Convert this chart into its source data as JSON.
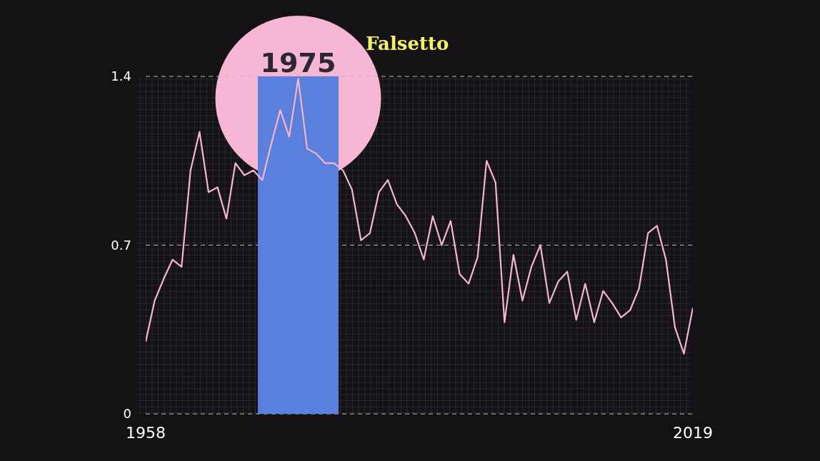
{
  "chart_data": {
    "type": "line",
    "title": "Falsetto",
    "x": [
      1958,
      1959,
      1960,
      1961,
      1962,
      1963,
      1964,
      1965,
      1966,
      1967,
      1968,
      1969,
      1970,
      1971,
      1972,
      1973,
      1974,
      1975,
      1976,
      1977,
      1978,
      1979,
      1980,
      1981,
      1982,
      1983,
      1984,
      1985,
      1986,
      1987,
      1988,
      1989,
      1990,
      1991,
      1992,
      1993,
      1994,
      1995,
      1996,
      1997,
      1998,
      1999,
      2000,
      2001,
      2002,
      2003,
      2004,
      2005,
      2006,
      2007,
      2008,
      2009,
      2010,
      2011,
      2012,
      2013,
      2014,
      2015,
      2016,
      2017,
      2018,
      2019
    ],
    "series": [
      {
        "color": "#f4b6cf",
        "values": [
          0.3,
          0.47,
          0.56,
          0.64,
          0.61,
          1.01,
          1.17,
          0.92,
          0.94,
          0.81,
          1.04,
          0.99,
          1.01,
          0.97,
          1.12,
          1.26,
          1.15,
          1.39,
          1.1,
          1.08,
          1.04,
          1.04,
          1.01,
          0.93,
          0.72,
          0.75,
          0.92,
          0.97,
          0.87,
          0.82,
          0.75,
          0.64,
          0.82,
          0.7,
          0.8,
          0.58,
          0.54,
          0.65,
          1.05,
          0.96,
          0.38,
          0.66,
          0.47,
          0.61,
          0.7,
          0.46,
          0.55,
          0.59,
          0.39,
          0.54,
          0.38,
          0.51,
          0.46,
          0.4,
          0.43,
          0.52,
          0.75,
          0.78,
          0.64,
          0.36,
          0.25,
          0.44
        ]
      }
    ],
    "xlim": [
      1958,
      2019
    ],
    "xticks": [
      1958,
      2019
    ],
    "ylim": [
      0,
      1.4
    ],
    "yticks": [
      0,
      0.7,
      1.4
    ],
    "grid": "y",
    "marker": "none",
    "line_style": "solid",
    "bands": [
      {
        "axis": "x",
        "from": 1970.5,
        "to": 1979.5,
        "label": "1975",
        "color": "#5b7fdd"
      }
    ]
  }
}
